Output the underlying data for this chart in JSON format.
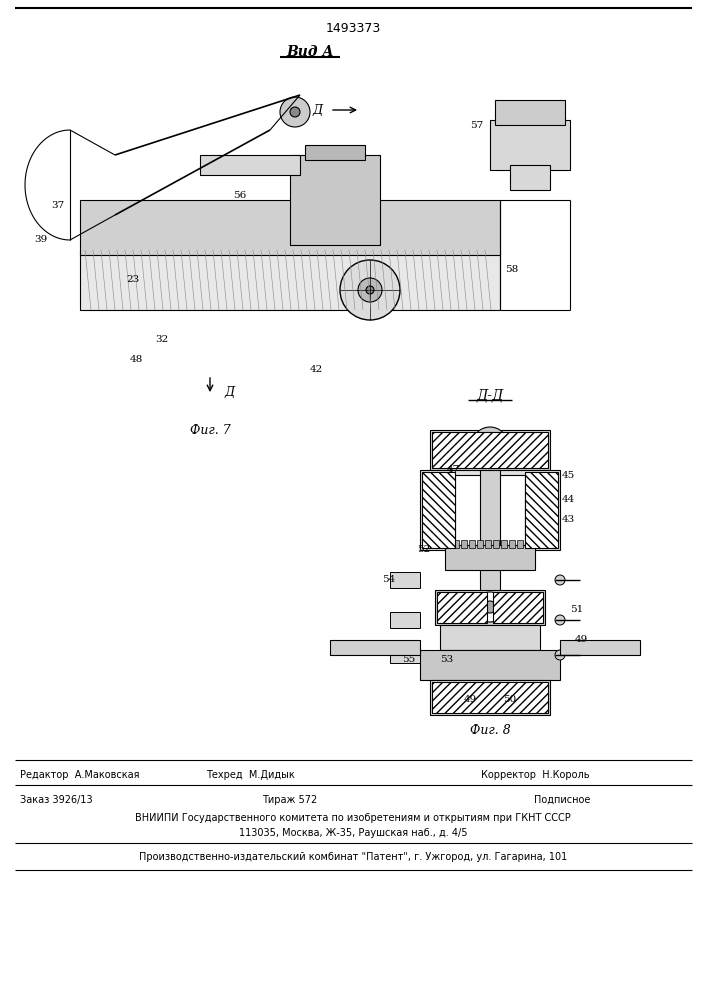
{
  "patent_number": "1493373",
  "view_label": "Вид А",
  "fig7_label": "Фиг. 7",
  "fig8_label": "Фиг. 8",
  "section_label": "Д-Д",
  "arrow_label": "Д",
  "editor_line": "Редактор  А.Маковская     Техред  М.Дидык          Корректор  Н.Король",
  "order_line": "Заказ 3926/13             Тираж 572                   Подписное",
  "vnipi_line": "ВНИИПИ Государственного комитета по изобретениям и открытиям при ГКНТ СССР",
  "address_line": "113035, Москва, Ж-35, Раушская наб., д. 4/5",
  "factory_line": "Производственно-издательский комбинат \"Патент\", г. Ужгород, ул. Гагарина, 101",
  "bg_color": "#ffffff",
  "line_color": "#000000",
  "fig_width": 7.07,
  "fig_height": 10.0,
  "dpi": 100
}
